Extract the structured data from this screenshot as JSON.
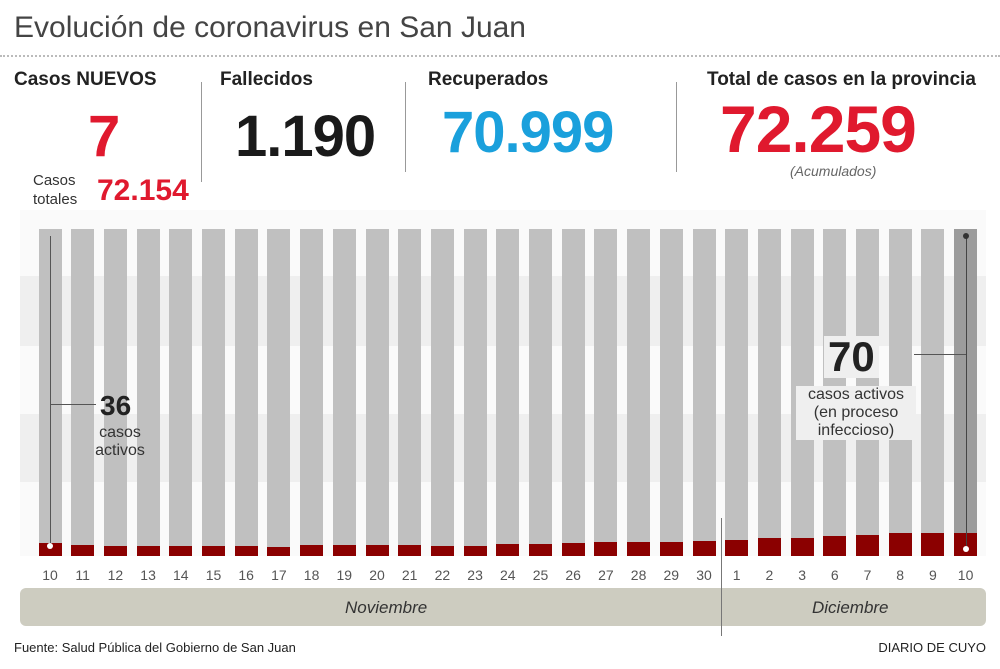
{
  "title": "Evolución de coronavirus en San Juan",
  "stats": {
    "new_cases": {
      "label": "Casos NUEVOS",
      "value": "7",
      "total_label_1": "Casos",
      "total_label_2": "totales",
      "total_value": "72.154"
    },
    "deaths": {
      "label": "Fallecidos",
      "value": "1.190"
    },
    "recovered": {
      "label": "Recuperados",
      "value": "70.999"
    },
    "province_total": {
      "label": "Total de casos en la provincia",
      "value": "72.259",
      "note": "(Acumulados)"
    }
  },
  "colors": {
    "red": "#e0192e",
    "blue": "#1aa0dc",
    "bar_red": "#8b0000",
    "bar_gray": "#c0c0c0",
    "last_bar_gray": "#9c9c9c"
  },
  "chart_data": {
    "type": "bar",
    "categories": [
      "10",
      "11",
      "12",
      "13",
      "14",
      "15",
      "16",
      "17",
      "18",
      "19",
      "20",
      "21",
      "22",
      "23",
      "24",
      "25",
      "26",
      "27",
      "28",
      "29",
      "30",
      "1",
      "2",
      "3",
      "6",
      "7",
      "8",
      "9",
      "10"
    ],
    "values": [
      36,
      29,
      26,
      26,
      26,
      26,
      26,
      22,
      29,
      29,
      29,
      29,
      26,
      26,
      33,
      34,
      36,
      39,
      40,
      40,
      44,
      48,
      52,
      53,
      61,
      63,
      70,
      69,
      70
    ],
    "months": [
      "Noviembre",
      "Diciembre"
    ],
    "annotations": [
      {
        "value": "36",
        "line1": "casos",
        "line2": "activos"
      },
      {
        "value": "70",
        "line1": "casos activos",
        "line2": "(en proceso",
        "line3": "infeccioso)"
      }
    ]
  },
  "footer": {
    "source": "Fuente: Salud Pública del Gobierno de San Juan",
    "brand": "DIARIO DE CUYO"
  }
}
